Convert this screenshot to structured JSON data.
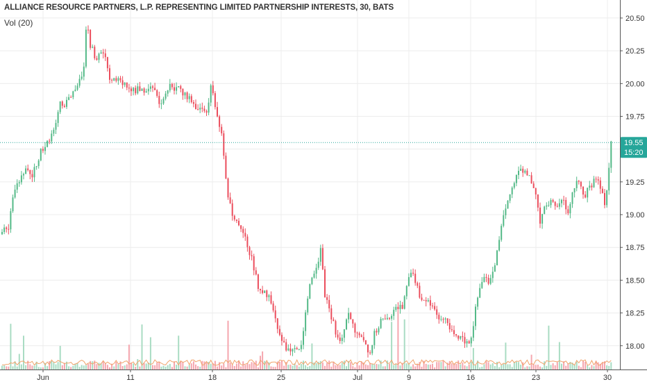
{
  "header": {
    "title": "ALLIANCE RESOURCE PARTNERS, L.P. REPRESENTING LIMITED PARTNERSHIP INTERESTS, 30, BATS",
    "volume_indicator": "Vol (20)"
  },
  "price_badge": {
    "price": "19.55",
    "countdown": "15:20"
  },
  "colors": {
    "up": "#53b987",
    "down": "#eb4d5c",
    "up_volume": "#a9dcc3",
    "down_volume": "#f5a6ae",
    "volume_ma": "#f0a36b",
    "price_line": "#26a69a",
    "badge": "#26a69a",
    "grid": "#ececec"
  },
  "chart_data": {
    "type": "candlestick",
    "title": "ALLIANCE RESOURCE PARTNERS, L.P. REPRESENTING LIMITED PARTNERSHIP INTERESTS, 30, BATS",
    "interval": "30",
    "exchange": "BATS",
    "ylim": [
      17.8,
      20.55
    ],
    "y_ticks": [
      "20.50",
      "20.25",
      "20.00",
      "19.75",
      "19.50",
      "19.25",
      "19.00",
      "18.75",
      "18.50",
      "18.25",
      "18.00"
    ],
    "x_ticks": [
      "Jun",
      "11",
      "18",
      "25",
      "Jul",
      "9",
      "16",
      "23",
      "30"
    ],
    "last_price": 19.55,
    "grid": true,
    "volume_study": "Vol (20)",
    "path": [
      [
        0,
        18.85
      ],
      [
        14,
        18.9
      ],
      [
        22,
        19.2
      ],
      [
        38,
        19.35
      ],
      [
        48,
        19.3
      ],
      [
        62,
        19.5
      ],
      [
        72,
        19.55
      ],
      [
        82,
        19.65
      ],
      [
        88,
        19.85
      ],
      [
        98,
        19.85
      ],
      [
        112,
        19.95
      ],
      [
        120,
        20.05
      ],
      [
        124,
        20.15
      ],
      [
        127,
        20.5
      ],
      [
        132,
        20.3
      ],
      [
        140,
        20.2
      ],
      [
        150,
        20.25
      ],
      [
        160,
        20.05
      ],
      [
        168,
        20.05
      ],
      [
        180,
        20.0
      ],
      [
        192,
        19.95
      ],
      [
        205,
        19.95
      ],
      [
        220,
        19.98
      ],
      [
        232,
        19.85
      ],
      [
        245,
        19.98
      ],
      [
        260,
        19.95
      ],
      [
        275,
        19.9
      ],
      [
        288,
        19.8
      ],
      [
        300,
        19.8
      ],
      [
        307,
        20.0
      ],
      [
        314,
        19.75
      ],
      [
        322,
        19.6
      ],
      [
        330,
        19.15
      ],
      [
        338,
        18.95
      ],
      [
        348,
        18.9
      ],
      [
        360,
        18.75
      ],
      [
        368,
        18.6
      ],
      [
        376,
        18.4
      ],
      [
        388,
        18.4
      ],
      [
        398,
        18.2
      ],
      [
        406,
        18.1
      ],
      [
        414,
        17.95
      ],
      [
        422,
        17.98
      ],
      [
        430,
        17.95
      ],
      [
        438,
        18.05
      ],
      [
        444,
        18.3
      ],
      [
        450,
        18.5
      ],
      [
        458,
        18.6
      ],
      [
        464,
        18.75
      ],
      [
        470,
        18.4
      ],
      [
        478,
        18.25
      ],
      [
        486,
        18.1
      ],
      [
        494,
        18.05
      ],
      [
        502,
        18.25
      ],
      [
        510,
        18.15
      ],
      [
        518,
        18.1
      ],
      [
        526,
        18.05
      ],
      [
        534,
        17.95
      ],
      [
        542,
        18.1
      ],
      [
        552,
        18.2
      ],
      [
        562,
        18.2
      ],
      [
        572,
        18.3
      ],
      [
        582,
        18.3
      ],
      [
        590,
        18.55
      ],
      [
        598,
        18.55
      ],
      [
        606,
        18.4
      ],
      [
        614,
        18.35
      ],
      [
        622,
        18.3
      ],
      [
        630,
        18.25
      ],
      [
        640,
        18.2
      ],
      [
        650,
        18.15
      ],
      [
        660,
        18.05
      ],
      [
        670,
        18.05
      ],
      [
        678,
        18.0
      ],
      [
        688,
        18.3
      ],
      [
        696,
        18.5
      ],
      [
        706,
        18.5
      ],
      [
        714,
        18.6
      ],
      [
        722,
        18.85
      ],
      [
        730,
        19.05
      ],
      [
        738,
        19.2
      ],
      [
        746,
        19.3
      ],
      [
        756,
        19.35
      ],
      [
        764,
        19.3
      ],
      [
        772,
        19.2
      ],
      [
        780,
        18.95
      ],
      [
        788,
        19.1
      ],
      [
        796,
        19.1
      ],
      [
        804,
        19.05
      ],
      [
        812,
        19.15
      ],
      [
        820,
        19.0
      ],
      [
        828,
        19.2
      ],
      [
        836,
        19.25
      ],
      [
        844,
        19.15
      ],
      [
        852,
        19.2
      ],
      [
        860,
        19.3
      ],
      [
        868,
        19.2
      ],
      [
        874,
        19.05
      ],
      [
        878,
        19.25
      ],
      [
        882,
        19.55
      ]
    ]
  }
}
